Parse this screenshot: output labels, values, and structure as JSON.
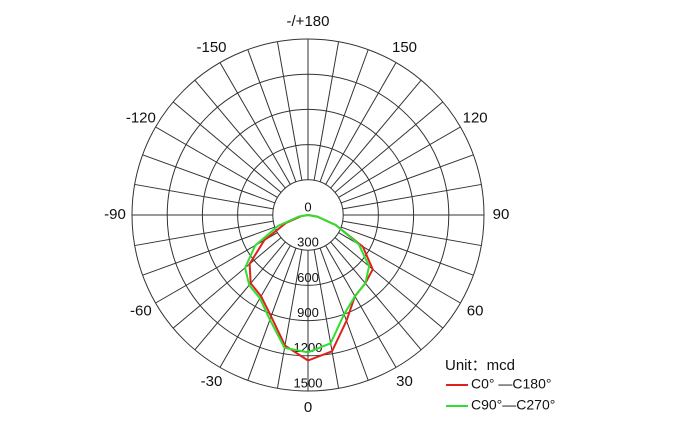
{
  "chart_data": {
    "type": "polar",
    "unit_label": "Unit：mcd",
    "rlim": [
      0,
      1500
    ],
    "rticks": [
      0,
      300,
      600,
      900,
      1200,
      1500
    ],
    "angle_ticks": [
      {
        "value": 180,
        "label": "-/+180"
      },
      150,
      120,
      90,
      60,
      30,
      0,
      -30,
      -60,
      -90,
      -120,
      -150
    ],
    "x": [
      -90,
      -80,
      -70,
      -60,
      -50,
      -40,
      -30,
      -20,
      -10,
      0,
      10,
      20,
      30,
      40,
      50,
      60,
      70,
      80,
      90
    ],
    "series": [
      {
        "name": "C0°  —C180°",
        "color": "#e0201e",
        "values": [
          0,
          60,
          200,
          430,
          650,
          760,
          800,
          920,
          1130,
          1240,
          1180,
          960,
          800,
          760,
          720,
          540,
          250,
          80,
          0
        ]
      },
      {
        "name": "C90°—C270°",
        "color": "#2ee02e",
        "values": [
          0,
          80,
          270,
          520,
          700,
          780,
          820,
          950,
          1150,
          1170,
          1110,
          900,
          800,
          760,
          680,
          500,
          250,
          80,
          0
        ]
      }
    ]
  }
}
